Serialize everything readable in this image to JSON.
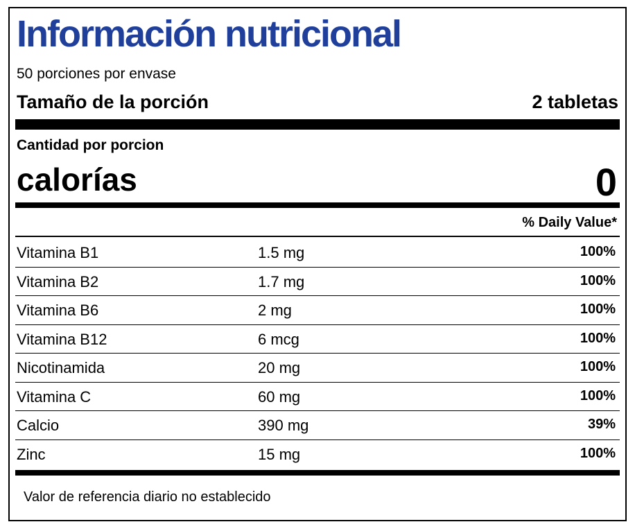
{
  "label": {
    "title": "Información nutricional",
    "servings_per_container": "50 porciones por envase",
    "serving_size_label": "Tamaño de la porción",
    "serving_size_value": "2 tabletas",
    "amount_per_serving": "Cantidad por porcion",
    "calories_label": "calorías",
    "calories_value": "0",
    "daily_value_header": "% Daily Value*",
    "nutrients": [
      {
        "name": "Vitamina B1",
        "amount": "1.5 mg",
        "dv": "100%"
      },
      {
        "name": "Vitamina B2",
        "amount": "1.7 mg",
        "dv": "100%"
      },
      {
        "name": "Vitamina B6",
        "amount": "2 mg",
        "dv": "100%"
      },
      {
        "name": "Vitamina B12",
        "amount": "6 mcg",
        "dv": "100%"
      },
      {
        "name": "Nicotinamida",
        "amount": "20 mg",
        "dv": "100%"
      },
      {
        "name": "Vitamina C",
        "amount": "60 mg",
        "dv": "100%"
      },
      {
        "name": "Calcio",
        "amount": "390 mg",
        "dv": "39%"
      },
      {
        "name": "Zinc",
        "amount": "15 mg",
        "dv": "100%"
      }
    ],
    "footnote": "Valor de referencia diario no establecido"
  },
  "colors": {
    "title": "#1f3f9a",
    "text": "#000000",
    "background": "#ffffff"
  }
}
